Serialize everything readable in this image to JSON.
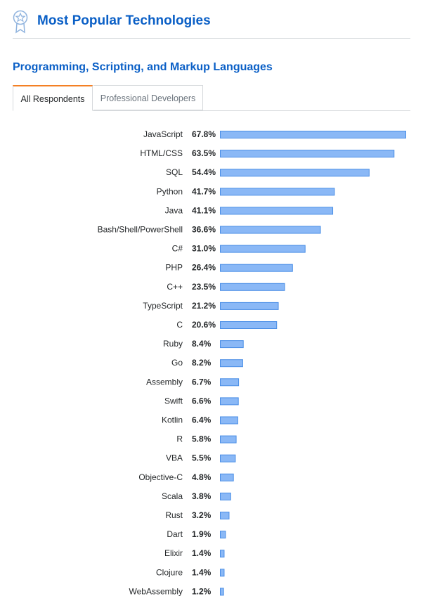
{
  "header": {
    "title": "Most Popular Technologies",
    "icon": "award-ribbon-icon",
    "accent_color": "#0a5fc6"
  },
  "section": {
    "title": "Programming, Scripting, and Markup Languages"
  },
  "tabs": [
    {
      "label": "All Respondents",
      "active": true
    },
    {
      "label": "Professional Developers",
      "active": false
    }
  ],
  "chart_data": {
    "type": "bar",
    "orientation": "horizontal",
    "unit": "%",
    "bar_color": "#8ab8f6",
    "categories": [
      "JavaScript",
      "HTML/CSS",
      "SQL",
      "Python",
      "Java",
      "Bash/Shell/PowerShell",
      "C#",
      "PHP",
      "C++",
      "TypeScript",
      "C",
      "Ruby",
      "Go",
      "Assembly",
      "Swift",
      "Kotlin",
      "R",
      "VBA",
      "Objective-C",
      "Scala",
      "Rust",
      "Dart",
      "Elixir",
      "Clojure",
      "WebAssembly"
    ],
    "values": [
      67.8,
      63.5,
      54.4,
      41.7,
      41.1,
      36.6,
      31.0,
      26.4,
      23.5,
      21.2,
      20.6,
      8.4,
      8.2,
      6.7,
      6.6,
      6.4,
      5.8,
      5.5,
      4.8,
      3.8,
      3.2,
      1.9,
      1.4,
      1.4,
      1.2
    ],
    "value_labels": [
      "67.8%",
      "63.5%",
      "54.4%",
      "41.7%",
      "41.1%",
      "36.6%",
      "31.0%",
      "26.4%",
      "23.5%",
      "21.2%",
      "20.6%",
      "8.4%",
      "8.2%",
      "6.7%",
      "6.6%",
      "6.4%",
      "5.8%",
      "5.5%",
      "4.8%",
      "3.8%",
      "3.2%",
      "1.9%",
      "1.4%",
      "1.4%",
      "1.2%"
    ],
    "xlim": [
      0,
      67.8
    ],
    "grid": false,
    "legend": "none"
  }
}
